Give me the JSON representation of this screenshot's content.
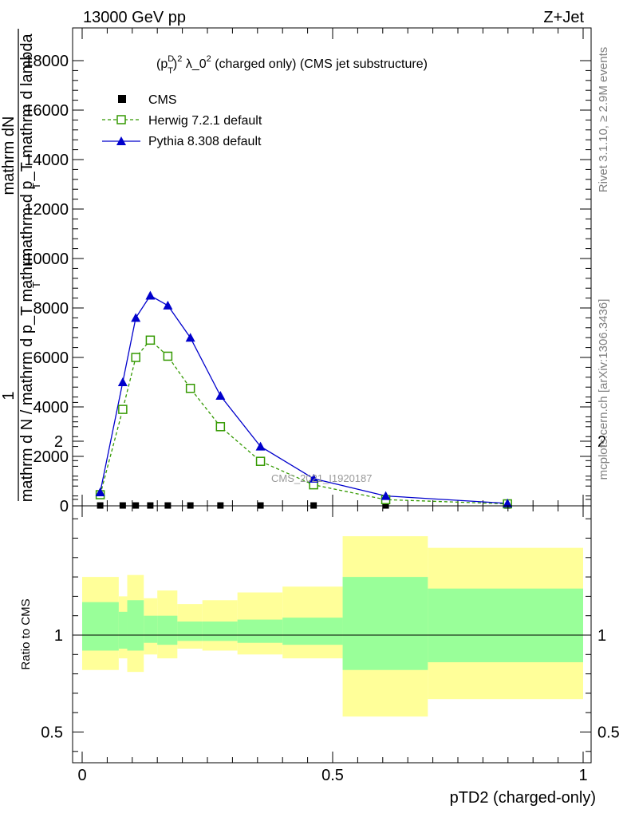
{
  "header": {
    "left": "13000 GeV pp",
    "right": "Z+Jet"
  },
  "side_labels": {
    "rivet": "Rivet 3.1.10, ≥ 2.9M events",
    "mcplots": "mcplots.cern.ch [arXiv:1306.3436]"
  },
  "upper_yaxis_label": {
    "numerator": "1",
    "fraction_top": "mathrm dN",
    "fraction_denominator": "mathrm d p_T mathrm d lambda",
    "prefix": "mathrm d N / mathrm d p_T mathrm",
    "sub_t": "T",
    "sub_t2": "T"
  },
  "colors": {
    "cms": "#000000",
    "herwig": "#339900",
    "pythia": "#0000cc",
    "band_outer": "#ffff99",
    "band_inner": "#99ff99"
  },
  "chart_data": [
    {
      "type": "line",
      "title_parts": {
        "p": "(p",
        "sup_d": "D",
        "sub_t": "T",
        "rest": ")",
        "sup_2": "2",
        "lambda": " λ_0",
        "sup_2b": "2",
        "tail": " (charged only) (CMS jet substructure)"
      },
      "watermark": "CMS_2021_I1920187",
      "xlim": [
        0,
        1
      ],
      "ylim": [
        0,
        18500
      ],
      "yticks": [
        {
          "v": 0,
          "label": "0"
        },
        {
          "v": 2000,
          "label": "2000"
        },
        {
          "v": 4000,
          "label": "4000"
        },
        {
          "v": 6000,
          "label": "6000"
        },
        {
          "v": 8000,
          "label": "8000"
        },
        {
          "v": 10000,
          "label": "10000"
        },
        {
          "v": 12000,
          "label": "12000"
        },
        {
          "v": 14000,
          "label": "14000"
        },
        {
          "v": 16000,
          "label": "16000"
        },
        {
          "v": 18000,
          "label": "18000"
        }
      ],
      "series": [
        {
          "name": "CMS",
          "style": "markers",
          "x": [
            0.036,
            0.081,
            0.107,
            0.136,
            0.171,
            0.216,
            0.276,
            0.356,
            0.462,
            0.606,
            0.849
          ],
          "y": [
            15,
            15,
            15,
            15,
            15,
            15,
            15,
            15,
            15,
            15,
            15
          ]
        },
        {
          "name": "Herwig 7.2.1 default",
          "style": "dashed-open-square",
          "x": [
            0.036,
            0.081,
            0.107,
            0.136,
            0.171,
            0.216,
            0.276,
            0.356,
            0.462,
            0.606,
            0.849
          ],
          "y": [
            450,
            3900,
            6000,
            6700,
            6050,
            4750,
            3200,
            1800,
            850,
            250,
            80
          ]
        },
        {
          "name": "Pythia 8.308 default",
          "style": "solid-filled-triangle",
          "x": [
            0.036,
            0.081,
            0.107,
            0.136,
            0.171,
            0.216,
            0.276,
            0.356,
            0.462,
            0.606,
            0.849
          ],
          "y": [
            550,
            5000,
            7600,
            8500,
            8100,
            6800,
            4450,
            2400,
            1100,
            400,
            100
          ]
        }
      ]
    },
    {
      "type": "area",
      "ylabel": "Ratio to CMS",
      "xlabel": "pTD2 (charged-only)",
      "xlim": [
        0,
        1
      ],
      "ylim": [
        0.3,
        2.3
      ],
      "xticks": [
        {
          "v": 0,
          "label": "0"
        },
        {
          "v": 0.5,
          "label": "0.5"
        },
        {
          "v": 1,
          "label": "1"
        }
      ],
      "yticks": [
        {
          "v": 0.5,
          "label": "0.5"
        },
        {
          "v": 1,
          "label": "1"
        },
        {
          "v": 2,
          "label": "2"
        }
      ],
      "reference_line": 1,
      "bins": [
        {
          "x0": 0.0,
          "x1": 0.073,
          "outer": [
            0.82,
            1.3
          ],
          "inner": [
            0.92,
            1.17
          ]
        },
        {
          "x0": 0.073,
          "x1": 0.09,
          "outer": [
            0.88,
            1.2
          ],
          "inner": [
            0.93,
            1.12
          ]
        },
        {
          "x0": 0.09,
          "x1": 0.123,
          "outer": [
            0.81,
            1.31
          ],
          "inner": [
            0.92,
            1.18
          ]
        },
        {
          "x0": 0.123,
          "x1": 0.15,
          "outer": [
            0.9,
            1.19
          ],
          "inner": [
            0.96,
            1.1
          ]
        },
        {
          "x0": 0.15,
          "x1": 0.19,
          "outer": [
            0.88,
            1.23
          ],
          "inner": [
            0.95,
            1.1
          ]
        },
        {
          "x0": 0.19,
          "x1": 0.24,
          "outer": [
            0.93,
            1.16
          ],
          "inner": [
            0.97,
            1.07
          ]
        },
        {
          "x0": 0.24,
          "x1": 0.31,
          "outer": [
            0.92,
            1.18
          ],
          "inner": [
            0.97,
            1.07
          ]
        },
        {
          "x0": 0.31,
          "x1": 0.4,
          "outer": [
            0.9,
            1.22
          ],
          "inner": [
            0.96,
            1.08
          ]
        },
        {
          "x0": 0.4,
          "x1": 0.52,
          "outer": [
            0.88,
            1.25
          ],
          "inner": [
            0.95,
            1.09
          ]
        },
        {
          "x0": 0.52,
          "x1": 0.69,
          "outer": [
            0.58,
            1.51
          ],
          "inner": [
            0.82,
            1.3
          ]
        },
        {
          "x0": 0.69,
          "x1": 1.0,
          "outer": [
            0.67,
            1.45
          ],
          "inner": [
            0.86,
            1.24
          ]
        }
      ]
    }
  ]
}
